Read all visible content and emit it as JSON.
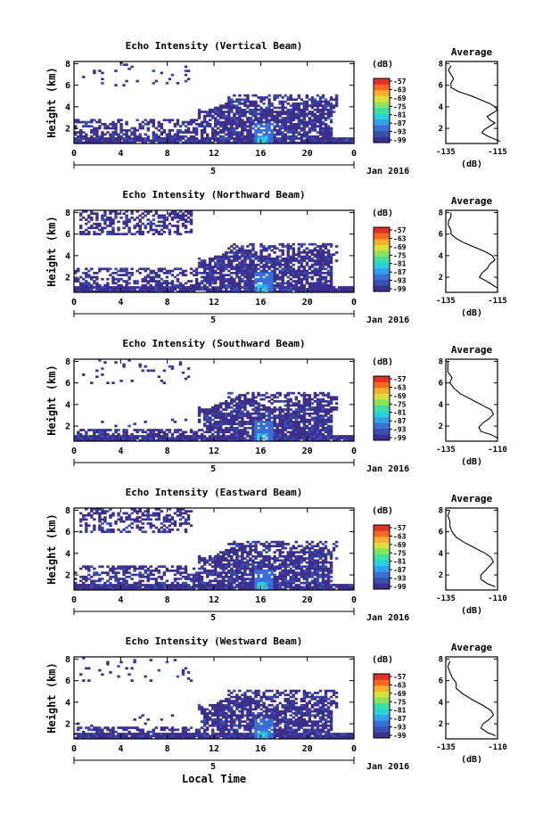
{
  "figure": {
    "xlabel": "Local Time",
    "date_label": "Jan 2016",
    "day_label": "5",
    "unit_label": "(dB)",
    "profile_title": "Average",
    "profile_xlabel": "(dB)",
    "height_label": "Height (km)"
  },
  "colors": {
    "scale": [
      "#3d2f8c",
      "#3b4fb0",
      "#3a6fd6",
      "#35a0e8",
      "#2ad0e0",
      "#3ee0a0",
      "#8ee060",
      "#d8e040",
      "#f5b030",
      "#f56a20",
      "#e0302a"
    ],
    "background": "#ffffff",
    "axis": "#000000"
  },
  "chart_data": [
    {
      "type": "heatmap",
      "title": "Echo Intensity (Vertical Beam)",
      "x_ticks": [
        "0",
        "4",
        "8",
        "12",
        "16",
        "20",
        "0"
      ],
      "y_ticks": [
        "2",
        "4",
        "6",
        "8"
      ],
      "xlim": [
        0,
        24
      ],
      "ylim": [
        0.6,
        8.2
      ],
      "colorbar_ticks": [
        "-57",
        "-63",
        "-69",
        "-75",
        "-81",
        "-87",
        "-93",
        "-99"
      ],
      "clim": [
        -99,
        -57
      ],
      "profile": {
        "xlim": [
          -135,
          -115
        ],
        "x_ticks": [
          "-135",
          "-115"
        ],
        "y_ticks": [
          "2",
          "4",
          "6",
          "8"
        ],
        "points": [
          [
            -114,
            0.8
          ],
          [
            -116,
            1.0
          ],
          [
            -119,
            1.3
          ],
          [
            -121,
            1.6
          ],
          [
            -120,
            1.9
          ],
          [
            -118,
            2.2
          ],
          [
            -116,
            2.5
          ],
          [
            -118,
            2.8
          ],
          [
            -119,
            3.1
          ],
          [
            -117,
            3.4
          ],
          [
            -115,
            3.7
          ],
          [
            -116,
            4.0
          ],
          [
            -118,
            4.3
          ],
          [
            -121,
            4.6
          ],
          [
            -125,
            5.0
          ],
          [
            -130,
            5.4
          ],
          [
            -133,
            5.8
          ],
          [
            -133,
            6.2
          ],
          [
            -132,
            6.6
          ],
          [
            -133,
            7.0
          ],
          [
            -134,
            7.4
          ],
          [
            -133,
            7.8
          ]
        ]
      }
    },
    {
      "type": "heatmap",
      "title": "Echo Intensity (Northward Beam)",
      "x_ticks": [
        "0",
        "4",
        "8",
        "12",
        "16",
        "20",
        "0"
      ],
      "y_ticks": [
        "2",
        "4",
        "6",
        "8"
      ],
      "xlim": [
        0,
        24
      ],
      "ylim": [
        0.6,
        8.2
      ],
      "colorbar_ticks": [
        "-57",
        "-63",
        "-69",
        "-75",
        "-81",
        "-87",
        "-93",
        "-99"
      ],
      "clim": [
        -99,
        -57
      ],
      "profile": {
        "xlim": [
          -135,
          -115
        ],
        "x_ticks": [
          "-135",
          "-115"
        ],
        "y_ticks": [
          "2",
          "4",
          "6",
          "8"
        ],
        "points": [
          [
            -115,
            1.0
          ],
          [
            -117,
            1.3
          ],
          [
            -119,
            1.6
          ],
          [
            -122,
            2.0
          ],
          [
            -121,
            2.4
          ],
          [
            -119,
            2.8
          ],
          [
            -118,
            3.2
          ],
          [
            -116,
            3.6
          ],
          [
            -117,
            4.0
          ],
          [
            -120,
            4.4
          ],
          [
            -124,
            4.8
          ],
          [
            -128,
            5.2
          ],
          [
            -131,
            5.6
          ],
          [
            -133,
            6.0
          ],
          [
            -133,
            6.4
          ],
          [
            -134,
            6.8
          ],
          [
            -134,
            7.2
          ],
          [
            -133,
            7.6
          ],
          [
            -133,
            8.0
          ]
        ]
      }
    },
    {
      "type": "heatmap",
      "title": "Echo Intensity (Southward Beam)",
      "x_ticks": [
        "0",
        "4",
        "8",
        "12",
        "16",
        "20",
        "0"
      ],
      "y_ticks": [
        "2",
        "4",
        "6",
        "8"
      ],
      "xlim": [
        0,
        24
      ],
      "ylim": [
        0.6,
        8.2
      ],
      "colorbar_ticks": [
        "-57",
        "-63",
        "-69",
        "-75",
        "-81",
        "-87",
        "-93",
        "-99"
      ],
      "clim": [
        -99,
        -57
      ],
      "profile": {
        "xlim": [
          -135,
          -110
        ],
        "x_ticks": [
          "-135",
          "-110"
        ],
        "y_ticks": [
          "2",
          "4",
          "6",
          "8"
        ],
        "points": [
          [
            -110,
            0.9
          ],
          [
            -113,
            1.2
          ],
          [
            -118,
            1.5
          ],
          [
            -119,
            1.9
          ],
          [
            -117,
            2.3
          ],
          [
            -114,
            2.7
          ],
          [
            -112,
            3.1
          ],
          [
            -113,
            3.5
          ],
          [
            -118,
            4.0
          ],
          [
            -123,
            4.5
          ],
          [
            -128,
            5.0
          ],
          [
            -131,
            5.5
          ],
          [
            -133,
            6.0
          ],
          [
            -132,
            6.5
          ],
          [
            -134,
            7.0
          ],
          [
            -134,
            7.5
          ],
          [
            -134,
            8.0
          ]
        ]
      }
    },
    {
      "type": "heatmap",
      "title": "Echo Intensity (Eastward Beam)",
      "x_ticks": [
        "0",
        "4",
        "8",
        "12",
        "16",
        "20",
        "0"
      ],
      "y_ticks": [
        "2",
        "4",
        "6",
        "8"
      ],
      "xlim": [
        0,
        24
      ],
      "ylim": [
        0.6,
        8.2
      ],
      "colorbar_ticks": [
        "-57",
        "-63",
        "-69",
        "-75",
        "-81",
        "-87",
        "-93",
        "-99"
      ],
      "clim": [
        -99,
        -57
      ],
      "profile": {
        "xlim": [
          -135,
          -110
        ],
        "x_ticks": [
          "-135",
          "-110"
        ],
        "y_ticks": [
          "2",
          "4",
          "6",
          "8"
        ],
        "points": [
          [
            -111,
            0.9
          ],
          [
            -115,
            1.2
          ],
          [
            -118,
            1.6
          ],
          [
            -118,
            2.0
          ],
          [
            -116,
            2.4
          ],
          [
            -114,
            2.8
          ],
          [
            -112,
            3.2
          ],
          [
            -113,
            3.6
          ],
          [
            -116,
            4.0
          ],
          [
            -121,
            4.5
          ],
          [
            -126,
            5.0
          ],
          [
            -130,
            5.5
          ],
          [
            -132,
            6.0
          ],
          [
            -133,
            6.5
          ],
          [
            -133,
            7.0
          ],
          [
            -134,
            7.5
          ],
          [
            -133,
            8.0
          ]
        ]
      }
    },
    {
      "type": "heatmap",
      "title": "Echo Intensity (Westward Beam)",
      "x_ticks": [
        "0",
        "4",
        "8",
        "12",
        "16",
        "20",
        "0"
      ],
      "y_ticks": [
        "2",
        "4",
        "6",
        "8"
      ],
      "xlim": [
        0,
        24
      ],
      "ylim": [
        0.6,
        8.2
      ],
      "colorbar_ticks": [
        "-57",
        "-63",
        "-69",
        "-75",
        "-81",
        "-87",
        "-93",
        "-99"
      ],
      "clim": [
        -99,
        -57
      ],
      "profile": {
        "xlim": [
          -135,
          -110
        ],
        "x_ticks": [
          "-135",
          "-110"
        ],
        "y_ticks": [
          "2",
          "4",
          "6",
          "8"
        ],
        "points": [
          [
            -111,
            0.9
          ],
          [
            -115,
            1.2
          ],
          [
            -118,
            1.6
          ],
          [
            -117,
            2.0
          ],
          [
            -114,
            2.4
          ],
          [
            -112,
            2.8
          ],
          [
            -113,
            3.2
          ],
          [
            -117,
            3.7
          ],
          [
            -122,
            4.2
          ],
          [
            -127,
            4.8
          ],
          [
            -130,
            5.3
          ],
          [
            -130,
            5.8
          ],
          [
            -132,
            6.3
          ],
          [
            -133,
            6.8
          ],
          [
            -134,
            7.3
          ],
          [
            -133,
            7.8
          ]
        ]
      }
    }
  ]
}
